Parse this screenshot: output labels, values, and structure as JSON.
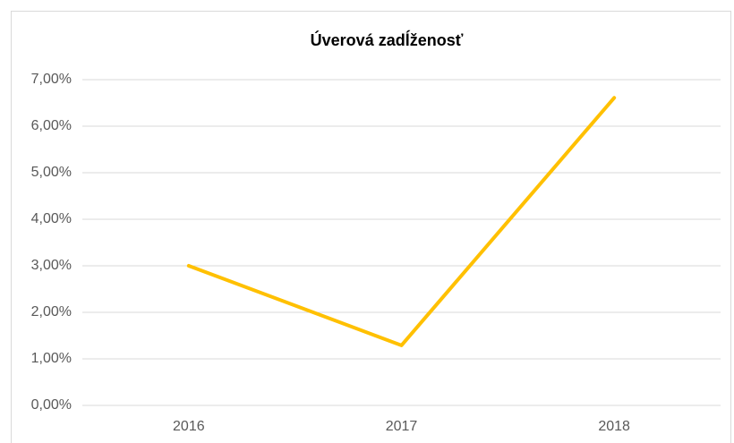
{
  "chart_data": {
    "type": "line",
    "title": "Úverová zadĺženosť",
    "categories": [
      "2016",
      "2017",
      "2018"
    ],
    "values": [
      3.0,
      1.29,
      6.61
    ],
    "color": "#ffc000",
    "ylim": [
      0,
      7
    ],
    "yticks": [
      {
        "value": 0,
        "label": "0,00%"
      },
      {
        "value": 1,
        "label": "1,00%"
      },
      {
        "value": 2,
        "label": "2,00%"
      },
      {
        "value": 3,
        "label": "3,00%"
      },
      {
        "value": 4,
        "label": "4,00%"
      },
      {
        "value": 5,
        "label": "5,00%"
      },
      {
        "value": 6,
        "label": "6,00%"
      },
      {
        "value": 7,
        "label": "7,00%"
      }
    ],
    "grid": true
  }
}
